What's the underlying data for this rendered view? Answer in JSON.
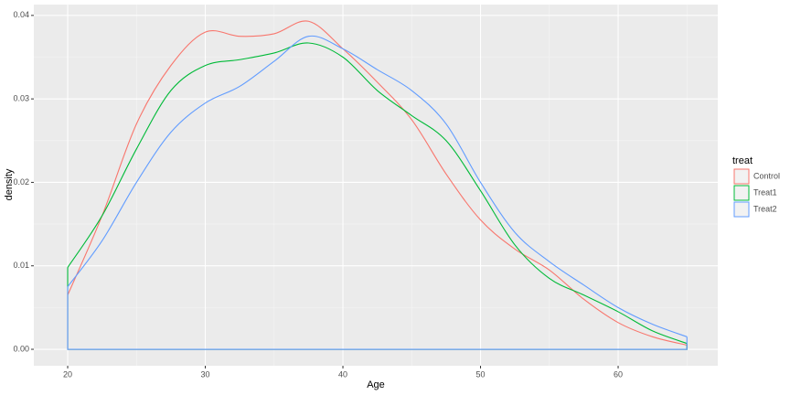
{
  "chart_data": {
    "type": "density",
    "x_label": "Age",
    "y_label": "density",
    "legend_title": "treat",
    "legend_position": "right",
    "grid": true,
    "x": [
      20,
      22.5,
      25,
      27.5,
      30,
      32.5,
      35,
      37.5,
      40,
      42.5,
      45,
      47.5,
      50,
      52.5,
      55,
      57.5,
      60,
      62.5,
      65
    ],
    "series": [
      {
        "name": "Control",
        "color": "#F8766D",
        "values": [
          0.0065,
          0.016,
          0.027,
          0.034,
          0.038,
          0.0375,
          0.0378,
          0.0393,
          0.036,
          0.032,
          0.0275,
          0.021,
          0.0155,
          0.012,
          0.0095,
          0.006,
          0.0032,
          0.0015,
          0.0005
        ]
      },
      {
        "name": "Treat1",
        "color": "#00BA38",
        "values": [
          0.0098,
          0.016,
          0.024,
          0.031,
          0.034,
          0.0347,
          0.0355,
          0.0367,
          0.035,
          0.031,
          0.028,
          0.025,
          0.019,
          0.0125,
          0.0085,
          0.0065,
          0.0045,
          0.0022,
          0.0007
        ]
      },
      {
        "name": "Treat2",
        "color": "#619CFF",
        "values": [
          0.0075,
          0.013,
          0.02,
          0.026,
          0.0295,
          0.0315,
          0.0345,
          0.0375,
          0.036,
          0.0335,
          0.031,
          0.027,
          0.02,
          0.014,
          0.0105,
          0.0077,
          0.005,
          0.003,
          0.0015
        ]
      }
    ],
    "xlim": [
      17.54,
      67.24
    ],
    "ylim": [
      -0.00197,
      0.0413
    ],
    "xticks": [
      20,
      30,
      40,
      50,
      60
    ],
    "yticks": [
      {
        "value": 0,
        "label": "0.00"
      },
      0.01,
      0.02,
      0.03,
      0.04
    ]
  }
}
